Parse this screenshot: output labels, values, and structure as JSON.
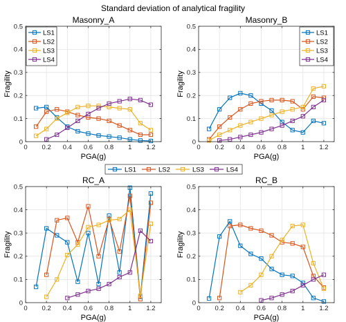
{
  "figure": {
    "title": "Standard deviation of analytical fragility"
  },
  "series_colors": [
    "#0072BD",
    "#D95319",
    "#EDB120",
    "#7E2F8E"
  ],
  "chart_data": [
    {
      "type": "line",
      "title": "Masonry_A",
      "xlabel": "PGA(g)",
      "ylabel": "Fragility",
      "xlim": [
        0,
        1.3
      ],
      "ylim": [
        0,
        0.5
      ],
      "xticks": [
        "0",
        "0.2",
        "0.4",
        "0.6",
        "0.8",
        "1",
        "1.2"
      ],
      "yticks": [
        "0",
        "0.1",
        "0.2",
        "0.3",
        "0.4",
        "0.5"
      ],
      "grid": true,
      "legend": "top-left",
      "series": [
        {
          "name": "LS1",
          "x": [
            0.1,
            0.2,
            0.3,
            0.4,
            0.5,
            0.6,
            0.7,
            0.8,
            0.9,
            1.0,
            1.1,
            1.2
          ],
          "y": [
            0.145,
            0.15,
            0.105,
            0.065,
            0.045,
            0.035,
            0.027,
            0.022,
            0.017,
            0.01,
            0.005,
            0.003
          ]
        },
        {
          "name": "LS2",
          "x": [
            0.1,
            0.2,
            0.3,
            0.4,
            0.5,
            0.6,
            0.7,
            0.8,
            0.9,
            1.0,
            1.1,
            1.2
          ],
          "y": [
            0.065,
            0.13,
            0.14,
            0.13,
            0.115,
            0.105,
            0.1,
            0.09,
            0.07,
            0.05,
            0.03,
            0.03
          ]
        },
        {
          "name": "LS3",
          "x": [
            0.1,
            0.2,
            0.3,
            0.4,
            0.5,
            0.6,
            0.7,
            0.8,
            0.9,
            1.0,
            1.1,
            1.2
          ],
          "y": [
            0.025,
            0.055,
            0.1,
            0.125,
            0.15,
            0.155,
            0.155,
            0.15,
            0.145,
            0.14,
            0.08,
            0.05
          ]
        },
        {
          "name": "LS4",
          "x": [
            0.2,
            0.3,
            0.4,
            0.5,
            0.6,
            0.7,
            0.8,
            0.9,
            1.0,
            1.1,
            1.2
          ],
          "y": [
            0.01,
            0.03,
            0.06,
            0.09,
            0.12,
            0.145,
            0.165,
            0.175,
            0.185,
            0.18,
            0.16
          ]
        }
      ]
    },
    {
      "type": "line",
      "title": "Masonry_B",
      "xlabel": "PGA(g)",
      "ylabel": "Fragility",
      "xlim": [
        0,
        1.3
      ],
      "ylim": [
        0,
        0.5
      ],
      "xticks": [
        "0",
        "0.2",
        "0.4",
        "0.6",
        "0.8",
        "1",
        "1.2"
      ],
      "yticks": [
        "0",
        "0.1",
        "0.2",
        "0.3",
        "0.4",
        "0.5"
      ],
      "grid": true,
      "legend": "top-right",
      "series": [
        {
          "name": "LS1",
          "x": [
            0.1,
            0.2,
            0.3,
            0.4,
            0.5,
            0.6,
            0.7,
            0.8,
            0.9,
            1.0,
            1.1,
            1.2
          ],
          "y": [
            0.055,
            0.14,
            0.19,
            0.21,
            0.2,
            0.165,
            0.135,
            0.085,
            0.05,
            0.04,
            0.09,
            0.08
          ]
        },
        {
          "name": "LS2",
          "x": [
            0.1,
            0.2,
            0.3,
            0.4,
            0.5,
            0.6,
            0.7,
            0.8,
            0.9,
            1.0,
            1.1,
            1.2
          ],
          "y": [
            0.01,
            0.065,
            0.105,
            0.14,
            0.165,
            0.175,
            0.18,
            0.18,
            0.175,
            0.14,
            0.195,
            0.19
          ]
        },
        {
          "name": "LS3",
          "x": [
            0.1,
            0.2,
            0.3,
            0.4,
            0.5,
            0.6,
            0.7,
            0.8,
            0.9,
            1.0,
            1.1,
            1.2
          ],
          "y": [
            0.005,
            0.03,
            0.05,
            0.07,
            0.085,
            0.1,
            0.115,
            0.13,
            0.14,
            0.15,
            0.23,
            0.24
          ]
        },
        {
          "name": "LS4",
          "x": [
            0.2,
            0.3,
            0.4,
            0.5,
            0.6,
            0.7,
            0.8,
            0.9,
            1.0,
            1.1,
            1.2
          ],
          "y": [
            0.005,
            0.01,
            0.02,
            0.03,
            0.04,
            0.055,
            0.07,
            0.09,
            0.11,
            0.15,
            0.18
          ]
        }
      ]
    },
    {
      "type": "line",
      "title": "RC_A",
      "xlabel": "PGA(g)",
      "ylabel": "Fragility",
      "xlim": [
        0,
        1.3
      ],
      "ylim": [
        0,
        0.5
      ],
      "xticks": [
        "0",
        "0.2",
        "0.4",
        "0.6",
        "0.8",
        "1",
        "1.2"
      ],
      "yticks": [
        "0",
        "0.1",
        "0.2",
        "0.3",
        "0.4",
        "0.5"
      ],
      "grid": true,
      "legend": "top-left",
      "series": [
        {
          "name": "LS1",
          "x": [
            0.1,
            0.2,
            0.3,
            0.4,
            0.5,
            0.6,
            0.7,
            0.8,
            0.9,
            1.0,
            1.1,
            1.2
          ],
          "y": [
            0.068,
            0.32,
            0.29,
            0.26,
            0.09,
            0.3,
            0.08,
            0.375,
            0.13,
            0.495,
            0.025,
            0.47
          ]
        },
        {
          "name": "LS2",
          "x": [
            0.2,
            0.3,
            0.4,
            0.5,
            0.6,
            0.7,
            0.8,
            0.9,
            1.0,
            1.1,
            1.2
          ],
          "y": [
            0.12,
            0.355,
            0.365,
            0.26,
            0.415,
            0.2,
            0.36,
            0.22,
            0.46,
            0.015,
            0.43
          ]
        },
        {
          "name": "LS3",
          "x": [
            0.2,
            0.3,
            0.4,
            0.5,
            0.6,
            0.7,
            0.8,
            0.9,
            1.0,
            1.1,
            1.2
          ],
          "y": [
            0.025,
            0.1,
            0.205,
            0.25,
            0.325,
            0.335,
            0.355,
            0.36,
            0.4,
            0.03,
            0.34
          ]
        },
        {
          "name": "LS4",
          "x": [
            0.4,
            0.5,
            0.6,
            0.7,
            0.8,
            0.9,
            1.0,
            1.1,
            1.2
          ],
          "y": [
            0.02,
            0.035,
            0.05,
            0.06,
            0.08,
            0.11,
            0.13,
            0.31,
            0.265
          ]
        }
      ]
    },
    {
      "type": "line",
      "title": "RC_B",
      "xlabel": "PGA(g)",
      "ylabel": "Fragility",
      "xlim": [
        0,
        1.3
      ],
      "ylim": [
        0,
        0.5
      ],
      "xticks": [
        "0",
        "0.2",
        "0.4",
        "0.6",
        "0.8",
        "1",
        "1.2"
      ],
      "yticks": [
        "0",
        "0.1",
        "0.2",
        "0.3",
        "0.4",
        "0.5"
      ],
      "grid": true,
      "legend": "top-right",
      "series": [
        {
          "name": "LS1",
          "x": [
            0.1,
            0.2,
            0.3,
            0.4,
            0.5,
            0.6,
            0.7,
            0.8,
            0.9,
            1.0,
            1.1,
            1.2
          ],
          "y": [
            0.018,
            0.285,
            0.35,
            0.245,
            0.21,
            0.19,
            0.145,
            0.12,
            0.115,
            0.085,
            0.02,
            0.005
          ]
        },
        {
          "name": "LS2",
          "x": [
            0.2,
            0.3,
            0.4,
            0.5,
            0.6,
            0.7,
            0.8,
            0.9,
            1.0,
            1.1,
            1.2
          ],
          "y": [
            0.02,
            0.33,
            0.335,
            0.32,
            0.31,
            0.29,
            0.26,
            0.255,
            0.24,
            0.115,
            0.065
          ]
        },
        {
          "name": "LS3",
          "x": [
            0.4,
            0.5,
            0.6,
            0.7,
            0.8,
            0.9,
            1.0,
            1.1,
            1.2
          ],
          "y": [
            0.045,
            0.075,
            0.12,
            0.2,
            0.27,
            0.33,
            0.335,
            0.17,
            0.06
          ]
        },
        {
          "name": "LS4",
          "x": [
            0.6,
            0.7,
            0.8,
            0.9,
            1.0,
            1.1,
            1.2
          ],
          "y": [
            0.01,
            0.02,
            0.035,
            0.05,
            0.075,
            0.1,
            0.12
          ]
        }
      ]
    }
  ],
  "shared_legend": {
    "placement": "center",
    "entries": [
      "LS1",
      "LS2",
      "LS3",
      "LS4"
    ]
  }
}
